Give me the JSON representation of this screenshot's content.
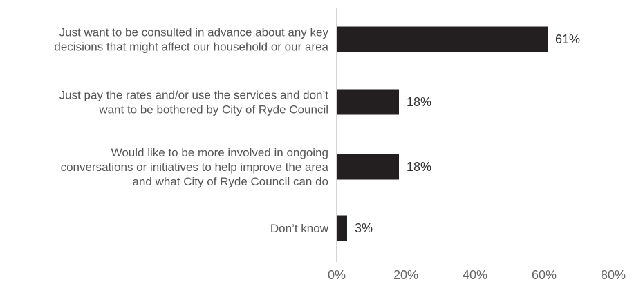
{
  "chart_data": {
    "type": "bar",
    "orientation": "horizontal",
    "categories": [
      [
        "Just want to be consulted in advance about any key",
        "decisions that might affect our household or our area"
      ],
      [
        "Just pay the rates and/or use the services and don’t",
        "want to be bothered by City of Ryde Council"
      ],
      [
        "Would like to be more involved in ongoing",
        "conversations or initiatives to help improve the area",
        "and what City of Ryde Council can do"
      ],
      [
        "Don’t know"
      ]
    ],
    "values": [
      61,
      18,
      18,
      3
    ],
    "value_labels": [
      "61%",
      "18%",
      "18%",
      "3%"
    ],
    "xlim": [
      0,
      80
    ],
    "x_ticks": [
      0,
      20,
      40,
      60,
      80
    ],
    "x_tick_labels": [
      "0%",
      "20%",
      "40%",
      "60%",
      "80%"
    ],
    "grid": false,
    "colors": {
      "bar": "#231f20",
      "axis": "#aaaaaa",
      "category_text": "#555555",
      "value_text": "#333333",
      "tick_text": "#666666"
    }
  }
}
